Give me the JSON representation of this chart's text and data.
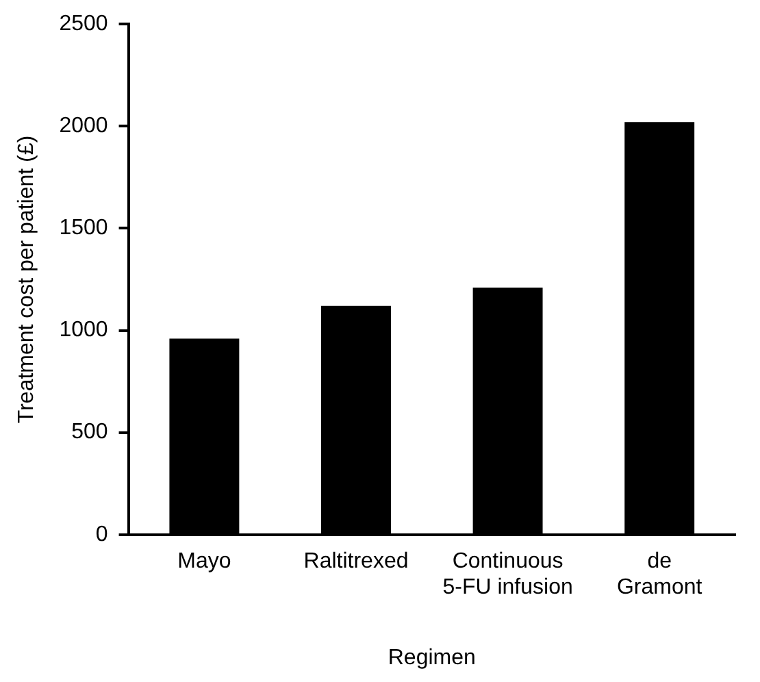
{
  "chart_data": {
    "type": "bar",
    "xlabel": "Regimen",
    "ylabel": "Treatment cost per patient (£)",
    "categories": [
      "Mayo",
      "Raltitrexed",
      "Continuous\n5-FU infusion",
      "de\nGramont"
    ],
    "values": [
      960,
      1120,
      1210,
      2020
    ],
    "color": "#000000",
    "ylim": [
      0,
      2500
    ],
    "yticks": [
      0,
      500,
      1000,
      1500,
      2000,
      2500
    ],
    "grid": false,
    "legend": false
  }
}
